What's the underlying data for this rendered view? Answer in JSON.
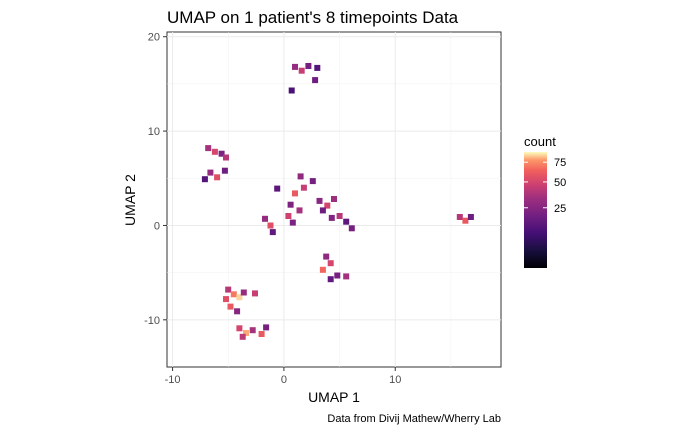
{
  "chart_data": {
    "type": "heatmap",
    "title": "UMAP on 1 patient's 8 timepoints Data",
    "xlabel": "UMAP 1",
    "ylabel": "UMAP 2",
    "caption": "Data from Divij Mathew/Wherry Lab",
    "xlim": [
      -10.5,
      19.5
    ],
    "ylim": [
      -15,
      20.5
    ],
    "x_ticks": [
      -10,
      0,
      10
    ],
    "y_ticks": [
      -10,
      0,
      10,
      20
    ],
    "grid": true,
    "legend": {
      "title": "count",
      "position": "right",
      "ticks": [
        25,
        50,
        75
      ],
      "range": [
        1,
        90
      ],
      "colormap": "magma"
    },
    "bins": [
      {
        "x": 1.0,
        "y": 16.8,
        "count": 30
      },
      {
        "x": 1.6,
        "y": 16.4,
        "count": 45
      },
      {
        "x": 2.2,
        "y": 16.9,
        "count": 20
      },
      {
        "x": 3.0,
        "y": 16.7,
        "count": 12
      },
      {
        "x": 2.8,
        "y": 15.4,
        "count": 18
      },
      {
        "x": 0.7,
        "y": 14.3,
        "count": 10
      },
      {
        "x": -6.8,
        "y": 8.2,
        "count": 35
      },
      {
        "x": -6.2,
        "y": 7.8,
        "count": 50
      },
      {
        "x": -5.6,
        "y": 7.6,
        "count": 22
      },
      {
        "x": -5.2,
        "y": 7.2,
        "count": 40
      },
      {
        "x": -6.6,
        "y": 5.6,
        "count": 30
      },
      {
        "x": -6.0,
        "y": 5.1,
        "count": 55
      },
      {
        "x": -5.3,
        "y": 5.8,
        "count": 18
      },
      {
        "x": -7.1,
        "y": 4.9,
        "count": 12
      },
      {
        "x": 1.5,
        "y": 5.2,
        "count": 28
      },
      {
        "x": 1.0,
        "y": 3.4,
        "count": 60
      },
      {
        "x": 1.8,
        "y": 4.0,
        "count": 45
      },
      {
        "x": 2.6,
        "y": 4.7,
        "count": 20
      },
      {
        "x": -0.6,
        "y": 3.9,
        "count": 14
      },
      {
        "x": 0.6,
        "y": 2.2,
        "count": 22
      },
      {
        "x": 1.4,
        "y": 1.6,
        "count": 35
      },
      {
        "x": 0.4,
        "y": 1.0,
        "count": 48
      },
      {
        "x": 3.2,
        "y": 2.6,
        "count": 26
      },
      {
        "x": 3.9,
        "y": 2.1,
        "count": 50
      },
      {
        "x": 4.5,
        "y": 2.8,
        "count": 32
      },
      {
        "x": 3.5,
        "y": 1.6,
        "count": 18
      },
      {
        "x": 5.0,
        "y": 1.0,
        "count": 40
      },
      {
        "x": 4.3,
        "y": 0.8,
        "count": 24
      },
      {
        "x": 5.6,
        "y": 0.4,
        "count": 14
      },
      {
        "x": 6.1,
        "y": -0.3,
        "count": 20
      },
      {
        "x": -1.7,
        "y": 0.7,
        "count": 30
      },
      {
        "x": -1.2,
        "y": 0.0,
        "count": 55
      },
      {
        "x": -1.0,
        "y": -0.7,
        "count": 15
      },
      {
        "x": 0.8,
        "y": 0.3,
        "count": 22
      },
      {
        "x": 15.8,
        "y": 0.9,
        "count": 40
      },
      {
        "x": 16.3,
        "y": 0.5,
        "count": 60
      },
      {
        "x": 16.8,
        "y": 0.9,
        "count": 18
      },
      {
        "x": 3.8,
        "y": -3.3,
        "count": 28
      },
      {
        "x": 4.2,
        "y": -4.0,
        "count": 50
      },
      {
        "x": 3.5,
        "y": -4.7,
        "count": 65
      },
      {
        "x": 4.8,
        "y": -5.3,
        "count": 20
      },
      {
        "x": 5.6,
        "y": -5.4,
        "count": 35
      },
      {
        "x": 4.2,
        "y": -5.7,
        "count": 15
      },
      {
        "x": -5.0,
        "y": -6.8,
        "count": 40
      },
      {
        "x": -4.5,
        "y": -7.3,
        "count": 70
      },
      {
        "x": -5.2,
        "y": -7.8,
        "count": 55
      },
      {
        "x": -4.0,
        "y": -7.6,
        "count": 85
      },
      {
        "x": -3.6,
        "y": -7.1,
        "count": 30
      },
      {
        "x": -2.6,
        "y": -7.2,
        "count": 45
      },
      {
        "x": -4.8,
        "y": -8.6,
        "count": 60
      },
      {
        "x": -4.2,
        "y": -9.1,
        "count": 25
      },
      {
        "x": -4.0,
        "y": -10.9,
        "count": 50
      },
      {
        "x": -3.4,
        "y": -11.4,
        "count": 80
      },
      {
        "x": -2.8,
        "y": -11.1,
        "count": 35
      },
      {
        "x": -2.0,
        "y": -11.5,
        "count": 60
      },
      {
        "x": -1.6,
        "y": -10.8,
        "count": 20
      },
      {
        "x": -3.7,
        "y": -11.8,
        "count": 42
      }
    ]
  }
}
